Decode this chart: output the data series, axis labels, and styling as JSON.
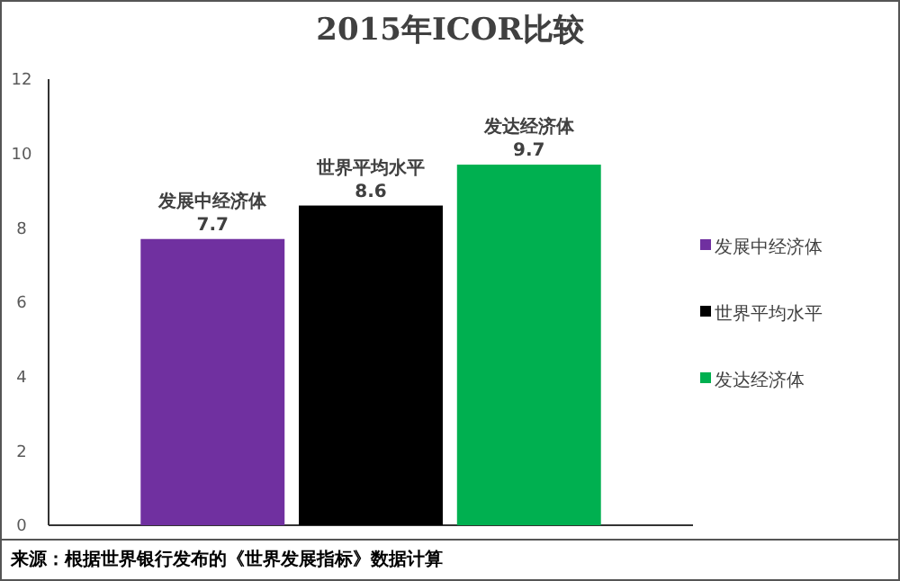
{
  "chart_data": {
    "type": "bar",
    "title": "2015年ICOR比较",
    "categories": [
      null
    ],
    "series": [
      {
        "name": "发展中经济体",
        "color": "#7030a0",
        "values": [
          7.7
        ]
      },
      {
        "name": "世界平均水平",
        "color": "#000000",
        "values": [
          8.6
        ]
      },
      {
        "name": "发达经济体",
        "color": "#00b050",
        "values": [
          9.7
        ]
      }
    ],
    "ylim": [
      0,
      12
    ],
    "yticks": [
      0,
      2,
      4,
      6,
      8,
      10,
      12
    ],
    "grid": false,
    "legend": "right",
    "data_labels": true,
    "annotations": [
      "来源：根据世界银行发布的《世界发展指标》数据计算"
    ]
  }
}
